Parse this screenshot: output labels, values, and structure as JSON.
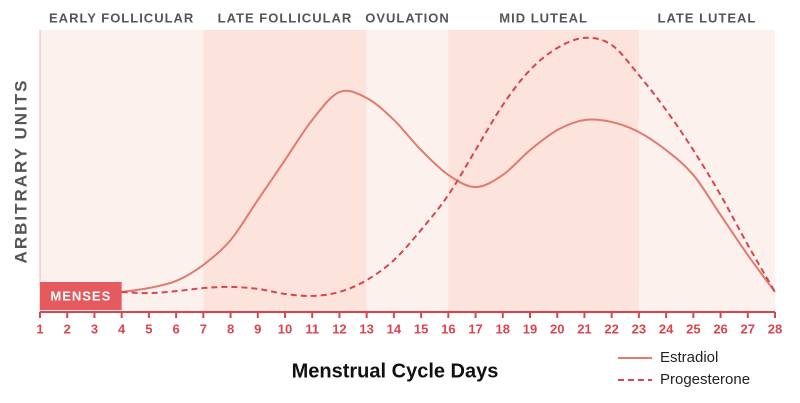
{
  "chart_data": {
    "type": "line",
    "x_label": "Menstrual Cycle Days",
    "y_label": "ARBITRARY UNITS",
    "xlim": [
      1,
      28
    ],
    "ylim": [
      0,
      100
    ],
    "xticks": [
      1,
      2,
      3,
      4,
      5,
      6,
      7,
      8,
      9,
      10,
      11,
      12,
      13,
      14,
      15,
      16,
      17,
      18,
      19,
      20,
      21,
      22,
      23,
      24,
      25,
      26,
      27,
      28
    ],
    "x": [
      4,
      5,
      6,
      7,
      8,
      9,
      10,
      11,
      12,
      13,
      14,
      15,
      16,
      17,
      18,
      19,
      20,
      21,
      22,
      23,
      24,
      25,
      26,
      27,
      28
    ],
    "phases": [
      {
        "label": "EARLY FOLLICULAR",
        "start": 1,
        "end": 7,
        "color": "#fdf1ee"
      },
      {
        "label": "LATE FOLLICULAR",
        "start": 7,
        "end": 13,
        "color": "#fce3dc"
      },
      {
        "label": "OVULATION",
        "start": 13,
        "end": 16,
        "color": "#fdf1ee"
      },
      {
        "label": "MID LUTEAL",
        "start": 16,
        "end": 23,
        "color": "#fce3dc"
      },
      {
        "label": "LATE LUTEAL",
        "start": 23,
        "end": 28,
        "color": "#fdf1ee"
      }
    ],
    "menses": {
      "label": "MENSES",
      "start": 1,
      "end": 4,
      "color": "#e45a5f"
    },
    "series": [
      {
        "name": "Estradiol",
        "color": "#e07b6e",
        "dash": false,
        "values": [
          7.1,
          8.5,
          11,
          16.7,
          25.5,
          39.7,
          53.9,
          68.1,
          78,
          75.9,
          68.1,
          57.4,
          48.6,
          44.3,
          48.6,
          57.4,
          64.5,
          68.1,
          67.4,
          63.8,
          57.4,
          48.6,
          34.4,
          20.2,
          7.1
        ]
      },
      {
        "name": "Progesterone",
        "color": "#d9454f",
        "dash": true,
        "values": [
          7.1,
          6.7,
          7.4,
          8.5,
          8.9,
          8.2,
          6.4,
          5.7,
          7.1,
          11.3,
          18.4,
          29.1,
          41.5,
          57.4,
          73.4,
          85.8,
          93.6,
          97.2,
          94.7,
          84.0,
          71.6,
          57.4,
          41.5,
          23.8,
          7.1
        ]
      }
    ]
  }
}
